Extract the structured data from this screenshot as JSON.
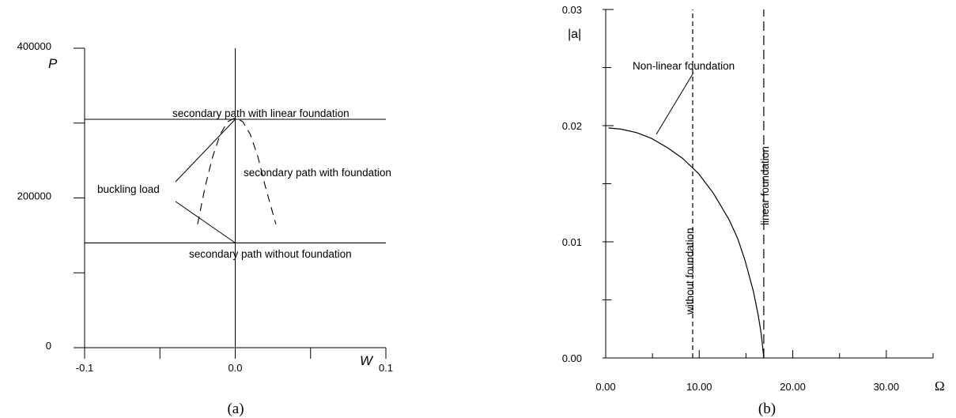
{
  "chart_data": [
    {
      "panel": "a",
      "type": "line",
      "caption": "(a)",
      "xlabel": "W",
      "ylabel": "P",
      "xlim": [
        -0.1,
        0.1
      ],
      "ylim": [
        0,
        400000
      ],
      "x_tick_labels": [
        "-0.1",
        "0.0",
        "0.1"
      ],
      "y_tick_labels": [
        "0",
        "200000",
        "400000"
      ],
      "x_ticks": [
        -0.1,
        -0.05,
        0.0,
        0.05,
        0.1
      ],
      "y_ticks": [
        0,
        100000,
        200000,
        300000,
        400000
      ],
      "series": [
        {
          "name": "secondary path with linear foundation",
          "style": "solid",
          "x": [
            -0.1,
            0.1
          ],
          "y": [
            305000,
            305000
          ]
        },
        {
          "name": "secondary path without foundation",
          "style": "solid",
          "x": [
            -0.1,
            0.1
          ],
          "y": [
            140000,
            140000
          ]
        },
        {
          "name": "secondary path with foundation",
          "style": "dashed",
          "x": [
            -0.025,
            -0.02,
            -0.015,
            -0.01,
            -0.005,
            0.0,
            0.005,
            0.01,
            0.015,
            0.02,
            0.027
          ],
          "y": [
            165000,
            215000,
            255000,
            285000,
            302000,
            307000,
            302000,
            285000,
            255000,
            215000,
            165000
          ]
        }
      ],
      "annotations": [
        {
          "id": "linear",
          "text": "secondary path with linear foundation"
        },
        {
          "id": "foundation",
          "text": "secondary path with foundation"
        },
        {
          "id": "buckling",
          "text": "buckling load"
        },
        {
          "id": "without",
          "text": "secondary path without foundation"
        }
      ]
    },
    {
      "panel": "b",
      "type": "line",
      "caption": "(b)",
      "xlabel": "Ω",
      "ylabel": "|a|",
      "xlim": [
        0,
        35
      ],
      "ylim": [
        0,
        0.03
      ],
      "x_tick_labels": [
        "0.00",
        "10.00",
        "20.00",
        "30.00"
      ],
      "y_tick_labels": [
        "0.00",
        "0.01",
        "0.02",
        "0.03"
      ],
      "x_ticks": [
        0,
        5,
        10,
        15,
        20,
        25,
        30,
        35
      ],
      "y_ticks": [
        0,
        0.005,
        0.01,
        0.015,
        0.02,
        0.025,
        0.03
      ],
      "series": [
        {
          "name": "Non-linear foundation",
          "style": "solid",
          "x": [
            0.3,
            1.6,
            3.3,
            4.9,
            6.6,
            8.2,
            9.9,
            11.5,
            13.2,
            14.1,
            14.9,
            15.8,
            16.3,
            16.6,
            16.75,
            16.9
          ],
          "y": [
            0.0198,
            0.0197,
            0.0194,
            0.0189,
            0.0181,
            0.0172,
            0.0159,
            0.0142,
            0.0119,
            0.0103,
            0.0084,
            0.0057,
            0.0037,
            0.0022,
            0.0012,
            0.0
          ]
        },
        {
          "name": "without foundation",
          "style": "dashed",
          "x": [
            9.3,
            9.3
          ],
          "y": [
            0,
            0.03
          ]
        },
        {
          "name": "linear foundation",
          "style": "dashed",
          "x": [
            16.9,
            16.9
          ],
          "y": [
            0,
            0.03
          ]
        }
      ],
      "annotations": [
        {
          "id": "nonlinear",
          "text": "Non-linear foundation"
        },
        {
          "id": "without",
          "text": "without foundation"
        },
        {
          "id": "linear",
          "text": "linear foundation"
        }
      ]
    }
  ]
}
